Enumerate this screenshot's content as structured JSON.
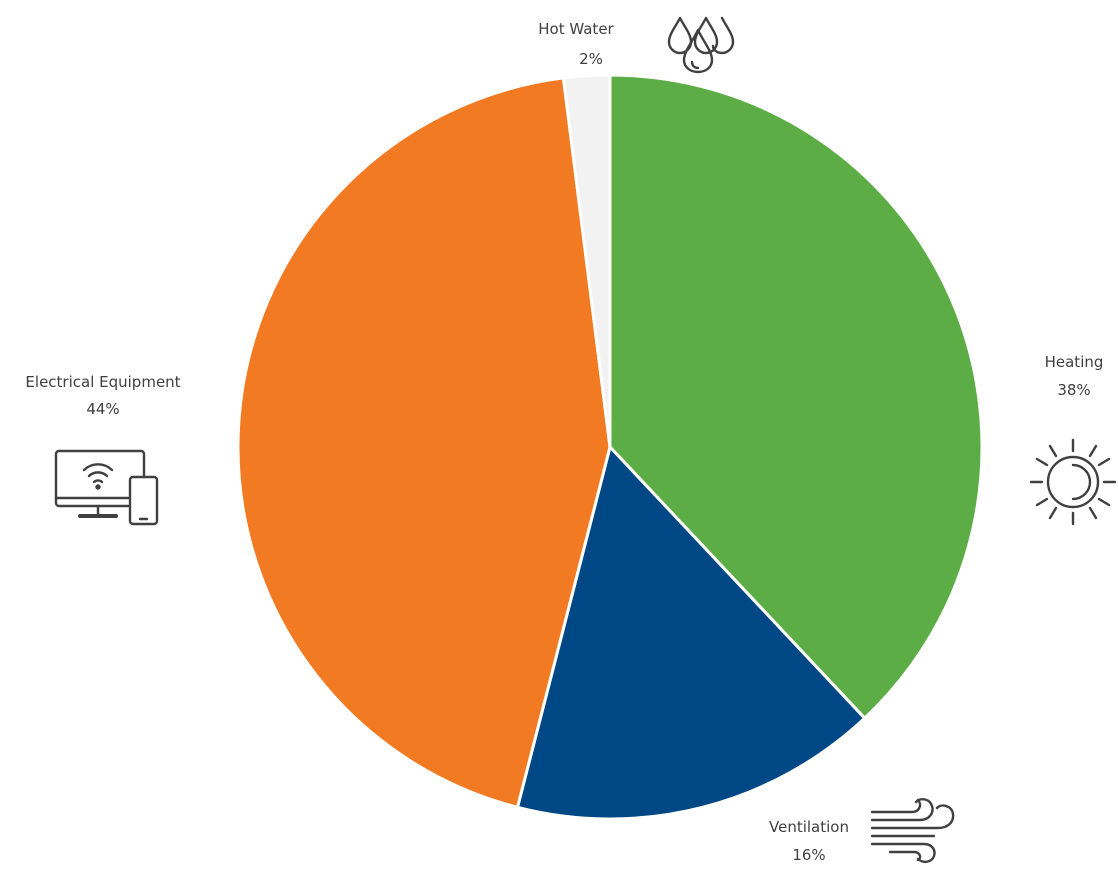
{
  "chart_data": {
    "type": "pie",
    "start_angle_deg": 0,
    "direction": "clockwise",
    "slices": [
      {
        "label": "Heating",
        "value": 38,
        "value_label": "38%",
        "color": "#5DAD47",
        "icon": "sun-icon"
      },
      {
        "label": "Ventilation",
        "value": 16,
        "value_label": "16%",
        "color": "#004785",
        "icon": "wind-icon"
      },
      {
        "label": "Electrical Equipment",
        "value": 44,
        "value_label": "44%",
        "color": "#F27A23",
        "icon": "monitor-phone-wifi-icon"
      },
      {
        "label": "Hot Water",
        "value": 2,
        "value_label": "2%",
        "color": "#F2F2F2",
        "icon": "water-drops-icon"
      }
    ],
    "legend": "none"
  }
}
